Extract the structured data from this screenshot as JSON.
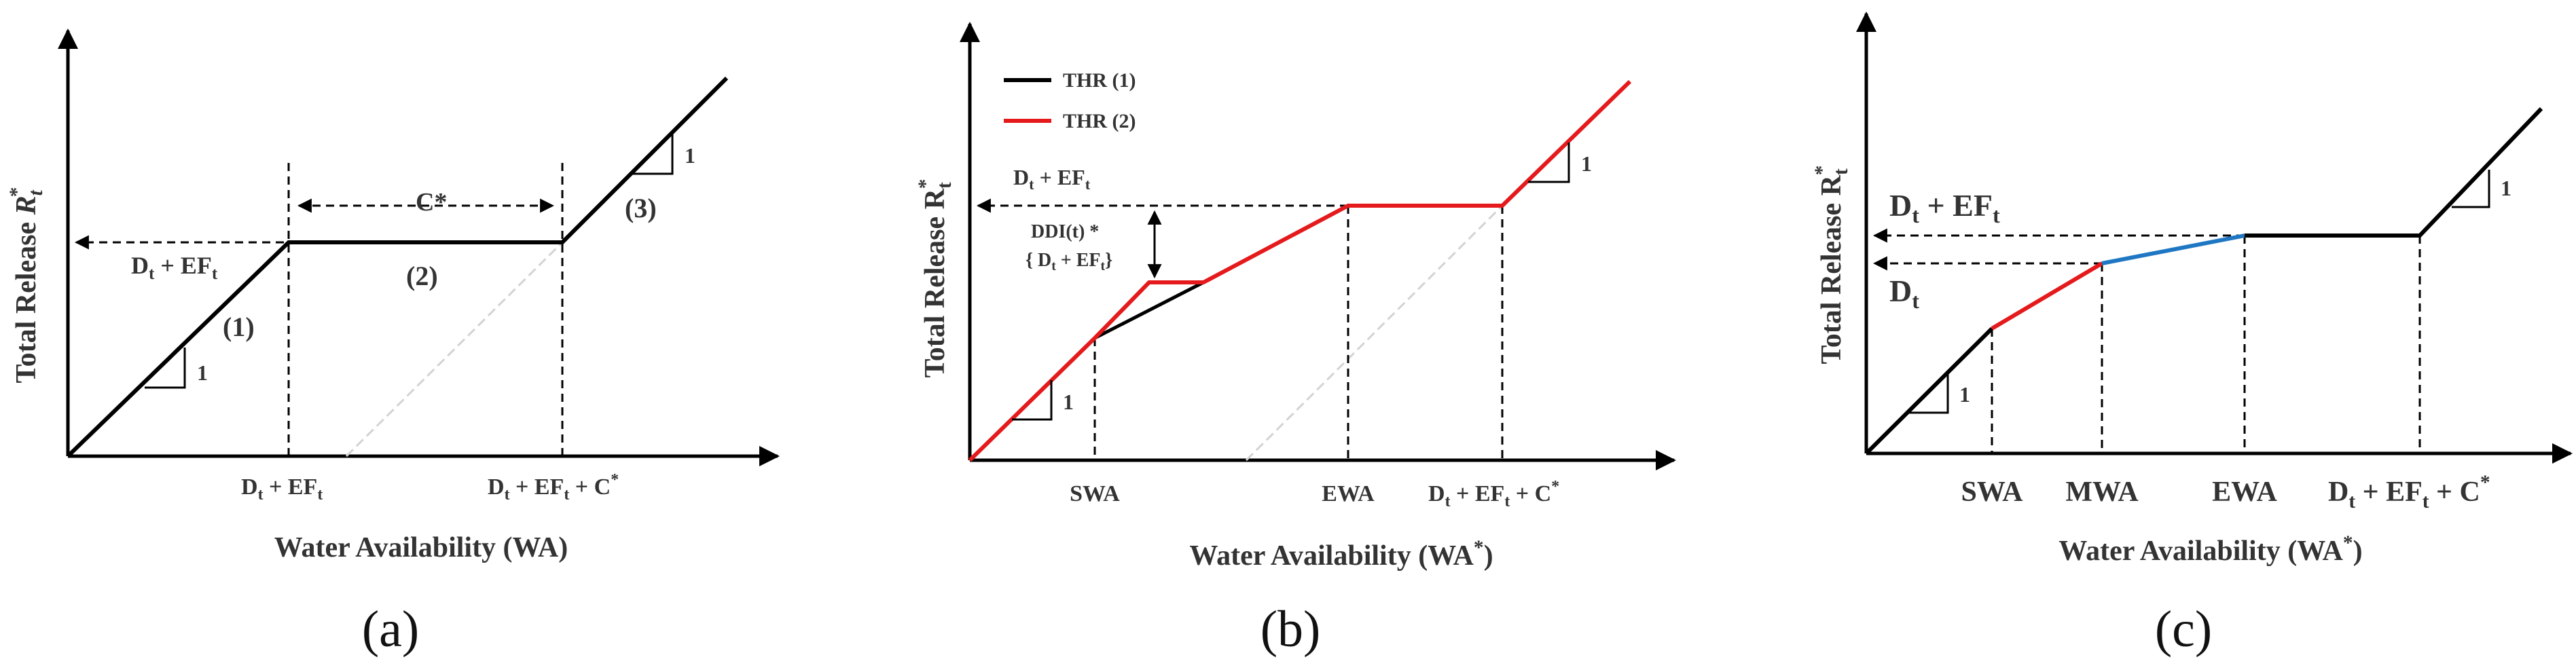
{
  "figure": {
    "colors": {
      "black": "#000000",
      "red": "#e41a1c",
      "blue": "#1f77c4",
      "gray": "#d3d3d3"
    },
    "panel_a": {
      "caption": "(a)",
      "y_axis_label": "Total Release",
      "y_axis_symbol": "R",
      "y_axis_sub": "t",
      "y_axis_sup": "*",
      "x_axis_label": "Water Availability (WA)",
      "level_label_main": "D",
      "level_label_sub1": "t",
      "level_label_mid": " + EF",
      "level_label_sub2": "t",
      "c_star_label": "C*",
      "segment_1": "(1)",
      "segment_2": "(2)",
      "segment_3": "(3)",
      "slope_label_low": "1",
      "slope_label_high": "1",
      "tick_1": {
        "main": "D",
        "sub1": "t",
        "mid": " + EF",
        "sub2": "t"
      },
      "tick_2": {
        "main": "D",
        "sub1": "t",
        "mid": " + EF",
        "sub2": "t",
        "tail": " + C",
        "sup": "*"
      }
    },
    "panel_b": {
      "caption": "(b)",
      "y_axis_label": "Total Release R",
      "y_axis_sub": "t",
      "y_axis_sup": "*",
      "x_axis_label": "Water Availability (WA",
      "x_axis_sup": "*",
      "x_axis_close": ")",
      "legend": [
        {
          "name": "THR (1)",
          "color": "#000000"
        },
        {
          "name": "THR (2)",
          "color": "#e41a1c"
        }
      ],
      "level_label": {
        "main": "D",
        "sub1": "t",
        "mid": " + EF",
        "sub2": "t"
      },
      "ddi_line1": "DDI(t) *",
      "ddi_line2": {
        "open": "{ D",
        "sub1": "t",
        "mid": " + EF",
        "sub2": "t",
        "close": "}"
      },
      "slope_label_low": "1",
      "slope_label_high": "1",
      "tick_swa": "SWA",
      "tick_ewa": "EWA",
      "tick_3": {
        "main": "D",
        "sub1": "t",
        "mid": " + EF",
        "sub2": "t",
        "tail": " + C",
        "sup": "*"
      }
    },
    "panel_c": {
      "caption": "(c)",
      "y_axis_label": "Total Release R",
      "y_axis_sub": "t",
      "y_axis_sup": "*",
      "x_axis_label": "Water Availability (WA",
      "x_axis_sup": "*",
      "x_axis_close": ")",
      "level_label_top": {
        "main": "D",
        "sub1": "t",
        "mid": " + EF",
        "sub2": "t"
      },
      "level_label_low": {
        "main": "D",
        "sub1": "t"
      },
      "slope_label_low": "1",
      "slope_label_high": "1",
      "tick_swa": "SWA",
      "tick_mwa": "MWA",
      "tick_ewa": "EWA",
      "tick_4": {
        "main": "D",
        "sub1": "t",
        "mid": " + EF",
        "sub2": "t",
        "tail": " + C",
        "sup": "*"
      }
    }
  }
}
